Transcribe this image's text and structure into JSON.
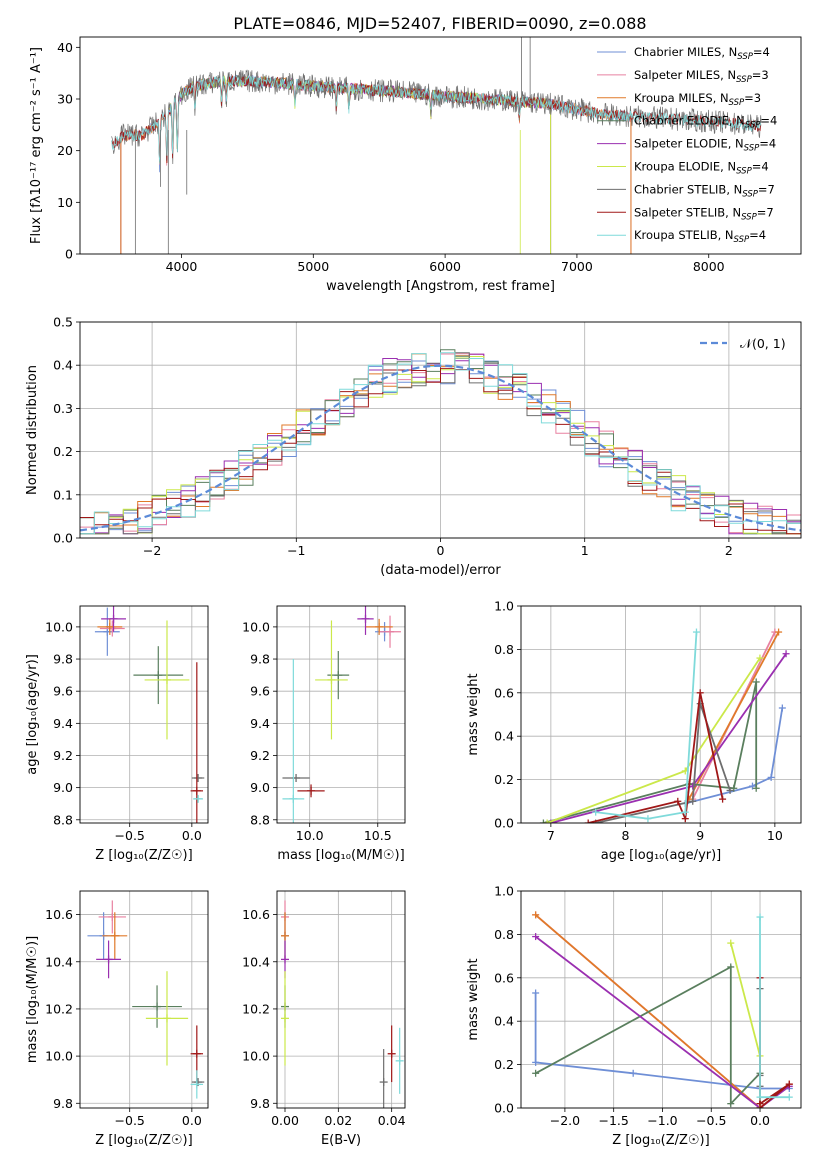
{
  "title": "PLATE=0846, MJD=52407, FIBERID=0090, z=0.088",
  "model_colors": {
    "Chabrier MILES": "#6f8fd6",
    "Salpeter MILES": "#e880a0",
    "Kroupa MILES": "#e07a2a",
    "Chabrier ELODIE": "#5a7f5e",
    "Salpeter ELODIE": "#9a2fb0",
    "Kroupa ELODIE": "#cbe84a",
    "Chabrier STELIB": "#6e6e6e",
    "Salpeter STELIB": "#a01818",
    "Kroupa STELIB": "#7fdada"
  },
  "chart_data": [
    {
      "id": "spectrum",
      "type": "line",
      "xlabel": "wavelength [Angstrom, rest frame]",
      "ylabel": "Flux [fλ10⁻¹⁷ erg cm⁻² s⁻¹ A⁻¹]",
      "xlim": [
        3230,
        8700
      ],
      "ylim": [
        0,
        42
      ],
      "xticks": [
        4000,
        5000,
        6000,
        7000,
        8000
      ],
      "yticks": [
        0,
        10,
        20,
        30,
        40
      ],
      "grid": false,
      "legend_position": "top-right",
      "legend": [
        {
          "name": "Chabrier MILES",
          "label": "Chabrier MILES, N",
          "sub": "SSP",
          "suffix": "=4"
        },
        {
          "name": "Salpeter MILES",
          "label": "Salpeter MILES, N",
          "sub": "SSP",
          "suffix": "=3"
        },
        {
          "name": "Kroupa MILES",
          "label": "Kroupa MILES, N",
          "sub": "SSP",
          "suffix": "=3"
        },
        {
          "name": "Chabrier ELODIE",
          "label": "Chabrier ELODIE, N",
          "sub": "SSP",
          "suffix": "=4"
        },
        {
          "name": "Salpeter ELODIE",
          "label": "Salpeter ELODIE, N",
          "sub": "SSP",
          "suffix": "=4"
        },
        {
          "name": "Kroupa ELODIE",
          "label": "Kroupa ELODIE, N",
          "sub": "SSP",
          "suffix": "=4"
        },
        {
          "name": "Chabrier STELIB",
          "label": "Chabrier STELIB, N",
          "sub": "SSP",
          "suffix": "=7"
        },
        {
          "name": "Salpeter STELIB",
          "label": "Salpeter STELIB, N",
          "sub": "SSP",
          "suffix": "=7"
        },
        {
          "name": "Kroupa STELIB",
          "label": "Kroupa STELIB, N",
          "sub": "SSP",
          "suffix": "=4"
        }
      ],
      "continuum": {
        "x": [
          3470,
          3560,
          3700,
          3800,
          3900,
          4000,
          4100,
          4300,
          4500,
          4800,
          5000,
          5300,
          5600,
          6000,
          6300,
          6600,
          6800,
          7000,
          7200,
          7500,
          7800,
          8100,
          8450
        ],
        "y": [
          21,
          23,
          23,
          25,
          27.5,
          31,
          32.5,
          33.5,
          33.5,
          33,
          32.5,
          32,
          31.5,
          30.5,
          30,
          29.5,
          29,
          28,
          27,
          26.5,
          26,
          25.5,
          24.5
        ]
      },
      "absorption_features": [
        3834,
        3889,
        3933,
        3968,
        4102,
        4304,
        4340,
        4861,
        5175,
        5270,
        5892,
        6563,
        8498,
        8542,
        8662
      ],
      "model_ranges": [
        {
          "name": "Chabrier MILES",
          "x": [
            3540,
            7410
          ]
        },
        {
          "name": "Salpeter MILES",
          "x": [
            3540,
            7410
          ]
        },
        {
          "name": "Kroupa MILES",
          "x": [
            3540,
            7410
          ]
        },
        {
          "name": "Chabrier ELODIE",
          "x": [
            3900,
            6800
          ]
        },
        {
          "name": "Salpeter ELODIE",
          "x": [
            3900,
            6800
          ]
        },
        {
          "name": "Kroupa ELODIE",
          "x": [
            3900,
            6800
          ]
        },
        {
          "name": "Chabrier STELIB",
          "x": [
            3470,
            8400
          ]
        },
        {
          "name": "Salpeter STELIB",
          "x": [
            3470,
            8400
          ]
        },
        {
          "name": "Kroupa STELIB",
          "x": [
            3470,
            8400
          ]
        }
      ]
    },
    {
      "id": "residuals",
      "type": "line",
      "xlabel": "(data-model)/error",
      "ylabel": "Normed distribution",
      "xlim": [
        -2.5,
        2.5
      ],
      "ylim": [
        0,
        0.5
      ],
      "xticks": [
        -2,
        -1,
        0,
        1,
        2
      ],
      "yticks": [
        0.0,
        0.1,
        0.2,
        0.3,
        0.4,
        0.5
      ],
      "grid": true,
      "legend_position": "top-right",
      "legend": [
        {
          "name": "N(0,1)",
          "label": "𝒩(0, 1)"
        }
      ],
      "histogram_bin_width": 0.1,
      "histogram_series": [
        "Chabrier MILES",
        "Salpeter MILES",
        "Kroupa MILES",
        "Chabrier ELODIE",
        "Salpeter ELODIE",
        "Kroupa ELODIE",
        "Chabrier STELIB",
        "Salpeter STELIB",
        "Kroupa STELIB"
      ]
    },
    {
      "id": "age_vs_Z",
      "type": "scatter",
      "xlabel": "Z [log₁₀(Z/Z☉)]",
      "ylabel": "age  [log₁₀(age/yr)]",
      "xlim": [
        -0.9,
        0.13
      ],
      "ylim": [
        8.78,
        10.13
      ],
      "xticks": [
        -0.5,
        0.0
      ],
      "yticks": [
        8.8,
        9.0,
        9.2,
        9.4,
        9.6,
        9.8,
        10.0
      ],
      "grid": true,
      "points": [
        {
          "name": "Chabrier MILES",
          "x": -0.68,
          "y": 9.97,
          "xerr": 0.1,
          "yerr": 0.15
        },
        {
          "name": "Salpeter MILES",
          "x": -0.64,
          "y": 9.99,
          "xerr": 0.1,
          "yerr": 0.05
        },
        {
          "name": "Kroupa MILES",
          "x": -0.66,
          "y": 10.0,
          "xerr": 0.1,
          "yerr": 0.05
        },
        {
          "name": "Chabrier ELODIE",
          "x": -0.27,
          "y": 9.7,
          "xerr": 0.2,
          "yerr": 0.18
        },
        {
          "name": "Salpeter ELODIE",
          "x": -0.63,
          "y": 10.05,
          "xerr": 0.1,
          "yerr": 0.08
        },
        {
          "name": "Kroupa ELODIE",
          "x": -0.2,
          "y": 9.67,
          "xerr": 0.18,
          "yerr": 0.37
        },
        {
          "name": "Chabrier STELIB",
          "x": 0.05,
          "y": 9.06,
          "xerr": 0.05,
          "yerr": 0.0
        },
        {
          "name": "Salpeter STELIB",
          "x": 0.04,
          "y": 8.98,
          "xerr": 0.05,
          "yerr": 0.8
        },
        {
          "name": "Kroupa STELIB",
          "x": 0.05,
          "y": 8.93,
          "xerr": 0.04,
          "yerr": 0.02
        }
      ]
    },
    {
      "id": "age_vs_mass",
      "type": "scatter",
      "xlabel": "mass [log₁₀(M/M☉)]",
      "ylabel": "",
      "xlim": [
        9.76,
        10.7
      ],
      "ylim": [
        8.78,
        10.13
      ],
      "xticks": [
        10.0,
        10.5
      ],
      "yticks": [
        8.8,
        9.0,
        9.2,
        9.4,
        9.6,
        9.8,
        10.0
      ],
      "grid": true,
      "points": [
        {
          "name": "Chabrier MILES",
          "x": 10.55,
          "y": 9.97,
          "xerr": 0.07,
          "yerr": 0.06
        },
        {
          "name": "Salpeter MILES",
          "x": 10.59,
          "y": 9.97,
          "xerr": 0.08,
          "yerr": 0.1
        },
        {
          "name": "Kroupa MILES",
          "x": 10.51,
          "y": 10.0,
          "xerr": 0.1,
          "yerr": 0.05
        },
        {
          "name": "Chabrier ELODIE",
          "x": 10.21,
          "y": 9.7,
          "xerr": 0.08,
          "yerr": 0.15
        },
        {
          "name": "Salpeter ELODIE",
          "x": 10.41,
          "y": 10.05,
          "xerr": 0.06,
          "yerr": 0.1
        },
        {
          "name": "Kroupa ELODIE",
          "x": 10.16,
          "y": 9.67,
          "xerr": 0.12,
          "yerr": 0.37
        },
        {
          "name": "Chabrier STELIB",
          "x": 9.9,
          "y": 9.06,
          "xerr": 0.1,
          "yerr": 0.0
        },
        {
          "name": "Salpeter STELIB",
          "x": 10.01,
          "y": 8.98,
          "xerr": 0.1,
          "yerr": 0.04
        },
        {
          "name": "Kroupa STELIB",
          "x": 9.88,
          "y": 8.93,
          "xerr": 0.08,
          "yerr": 0.87
        }
      ]
    },
    {
      "id": "weight_vs_age",
      "type": "line",
      "xlabel": "age  [log₁₀(age/yr)]",
      "ylabel": "mass weight",
      "xlim": [
        6.6,
        10.35
      ],
      "ylim": [
        0,
        1
      ],
      "xticks": [
        7,
        8,
        9,
        10
      ],
      "yticks": [
        0.0,
        0.2,
        0.4,
        0.6,
        0.8,
        1.0
      ],
      "grid": true,
      "series": [
        {
          "name": "Chabrier MILES",
          "x": [
            8.8,
            9.7,
            9.95,
            10.1
          ],
          "y": [
            0.09,
            0.17,
            0.21,
            0.53
          ]
        },
        {
          "name": "Salpeter MILES",
          "x": [
            8.9,
            10.0
          ],
          "y": [
            0.11,
            0.88
          ]
        },
        {
          "name": "Kroupa MILES",
          "x": [
            8.85,
            10.05
          ],
          "y": [
            0.11,
            0.88
          ]
        },
        {
          "name": "Chabrier ELODIE",
          "x": [
            6.9,
            8.85,
            9.45,
            9.75,
            9.75
          ],
          "y": [
            0.0,
            0.18,
            0.16,
            0.65,
            0.16
          ]
        },
        {
          "name": "Salpeter ELODIE",
          "x": [
            7.0,
            8.9,
            10.15
          ],
          "y": [
            0.0,
            0.17,
            0.78
          ]
        },
        {
          "name": "Kroupa ELODIE",
          "x": [
            6.95,
            8.8,
            9.8
          ],
          "y": [
            0.0,
            0.24,
            0.76
          ]
        },
        {
          "name": "Chabrier STELIB",
          "x": [
            7.6,
            8.9,
            9.0,
            9.4
          ],
          "y": [
            0.0,
            0.1,
            0.55,
            0.15
          ]
        },
        {
          "name": "Salpeter STELIB",
          "x": [
            7.5,
            8.7,
            8.8,
            9.0,
            9.3
          ],
          "y": [
            0.0,
            0.1,
            0.02,
            0.6,
            0.11
          ]
        },
        {
          "name": "Kroupa STELIB",
          "x": [
            7.6,
            8.3,
            8.8,
            8.95
          ],
          "y": [
            0.05,
            0.02,
            0.05,
            0.88
          ]
        }
      ]
    },
    {
      "id": "mass_vs_Z",
      "type": "scatter",
      "xlabel": "Z [log₁₀(Z/Z☉)]",
      "ylabel": "mass [log₁₀(M/M☉)]",
      "xlim": [
        -0.9,
        0.13
      ],
      "ylim": [
        9.78,
        10.7
      ],
      "xticks": [
        -0.5,
        0.0
      ],
      "yticks": [
        9.8,
        10.0,
        10.2,
        10.4,
        10.6
      ],
      "grid": true,
      "points": [
        {
          "name": "Chabrier MILES",
          "x": -0.71,
          "y": 10.51,
          "xerr": 0.13,
          "yerr": 0.1
        },
        {
          "name": "Salpeter MILES",
          "x": -0.64,
          "y": 10.59,
          "xerr": 0.11,
          "yerr": 0.07
        },
        {
          "name": "Kroupa MILES",
          "x": -0.62,
          "y": 10.51,
          "xerr": 0.1,
          "yerr": 0.1
        },
        {
          "name": "Chabrier ELODIE",
          "x": -0.28,
          "y": 10.21,
          "xerr": 0.2,
          "yerr": 0.09
        },
        {
          "name": "Salpeter ELODIE",
          "x": -0.67,
          "y": 10.41,
          "xerr": 0.1,
          "yerr": 0.08
        },
        {
          "name": "Kroupa ELODIE",
          "x": -0.2,
          "y": 10.16,
          "xerr": 0.17,
          "yerr": 0.2
        },
        {
          "name": "Chabrier STELIB",
          "x": 0.05,
          "y": 9.89,
          "xerr": 0.05,
          "yerr": 0.0
        },
        {
          "name": "Salpeter STELIB",
          "x": 0.04,
          "y": 10.01,
          "xerr": 0.05,
          "yerr": 0.12
        },
        {
          "name": "Kroupa STELIB",
          "x": 0.04,
          "y": 9.88,
          "xerr": 0.05,
          "yerr": 0.06
        }
      ]
    },
    {
      "id": "mass_vs_EBV",
      "type": "scatter",
      "xlabel": "E(B-V)",
      "ylabel": "",
      "xlim": [
        -0.003,
        0.045
      ],
      "ylim": [
        9.78,
        10.7
      ],
      "xticks": [
        0.0,
        0.02,
        0.04
      ],
      "yticks": [
        9.8,
        10.0,
        10.2,
        10.4,
        10.6
      ],
      "grid": true,
      "points": [
        {
          "name": "Chabrier MILES",
          "x": 0.0,
          "y": 10.51,
          "xerr": 0.0,
          "yerr": 0.1
        },
        {
          "name": "Salpeter MILES",
          "x": 0.0,
          "y": 10.59,
          "xerr": 0.0,
          "yerr": 0.07
        },
        {
          "name": "Kroupa MILES",
          "x": 0.0,
          "y": 10.51,
          "xerr": 0.0,
          "yerr": 0.1
        },
        {
          "name": "Chabrier ELODIE",
          "x": 0.0,
          "y": 10.21,
          "xerr": 0.0,
          "yerr": 0.09
        },
        {
          "name": "Salpeter ELODIE",
          "x": 0.0,
          "y": 10.41,
          "xerr": 0.0,
          "yerr": 0.08
        },
        {
          "name": "Kroupa ELODIE",
          "x": 0.0,
          "y": 10.16,
          "xerr": 0.0,
          "yerr": 0.2
        },
        {
          "name": "Chabrier STELIB",
          "x": 0.037,
          "y": 9.89,
          "xerr": 0.0,
          "yerr": 0.14
        },
        {
          "name": "Salpeter STELIB",
          "x": 0.04,
          "y": 10.01,
          "xerr": 0.0,
          "yerr": 0.12
        },
        {
          "name": "Kroupa STELIB",
          "x": 0.043,
          "y": 9.98,
          "xerr": 0.0,
          "yerr": 0.14
        }
      ]
    },
    {
      "id": "weight_vs_Z",
      "type": "line",
      "xlabel": "Z [log₁₀(Z/Z☉)]",
      "ylabel": "mass weight",
      "xlim": [
        -2.45,
        0.42
      ],
      "ylim": [
        0,
        1
      ],
      "xticks": [
        -2.0,
        -1.5,
        -1.0,
        -0.5,
        0.0
      ],
      "yticks": [
        0.0,
        0.2,
        0.4,
        0.6,
        0.8,
        1.0
      ],
      "grid": true,
      "series": [
        {
          "name": "Chabrier MILES",
          "x": [
            -2.3,
            -2.3,
            -1.3,
            0.0,
            0.3
          ],
          "y": [
            0.53,
            0.21,
            0.16,
            0.09,
            0.09
          ]
        },
        {
          "name": "Salpeter MILES",
          "x": [
            -2.3,
            0.0,
            0.3
          ],
          "y": [
            0.89,
            0.0,
            0.11
          ]
        },
        {
          "name": "Kroupa MILES",
          "x": [
            -2.3,
            0.0,
            0.3
          ],
          "y": [
            0.89,
            0.0,
            0.11
          ]
        },
        {
          "name": "Chabrier ELODIE",
          "x": [
            -2.3,
            -0.3,
            -0.3,
            0.0
          ],
          "y": [
            0.16,
            0.65,
            0.02,
            0.16
          ]
        },
        {
          "name": "Salpeter ELODIE",
          "x": [
            -2.3,
            0.0,
            0.3
          ],
          "y": [
            0.79,
            0.0,
            0.1
          ]
        },
        {
          "name": "Kroupa ELODIE",
          "x": [
            -0.3,
            0.0,
            0.0
          ],
          "y": [
            0.76,
            0.24,
            0.0
          ]
        },
        {
          "name": "Chabrier STELIB",
          "x": [
            0.0,
            0.0,
            0.0
          ],
          "y": [
            0.55,
            0.1,
            0.15
          ]
        },
        {
          "name": "Salpeter STELIB",
          "x": [
            0.0,
            0.0,
            0.3,
            0.0
          ],
          "y": [
            0.6,
            0.02,
            0.11,
            0.0
          ]
        },
        {
          "name": "Kroupa STELIB",
          "x": [
            0.0,
            0.0,
            0.3
          ],
          "y": [
            0.88,
            0.05,
            0.05
          ]
        }
      ]
    }
  ]
}
